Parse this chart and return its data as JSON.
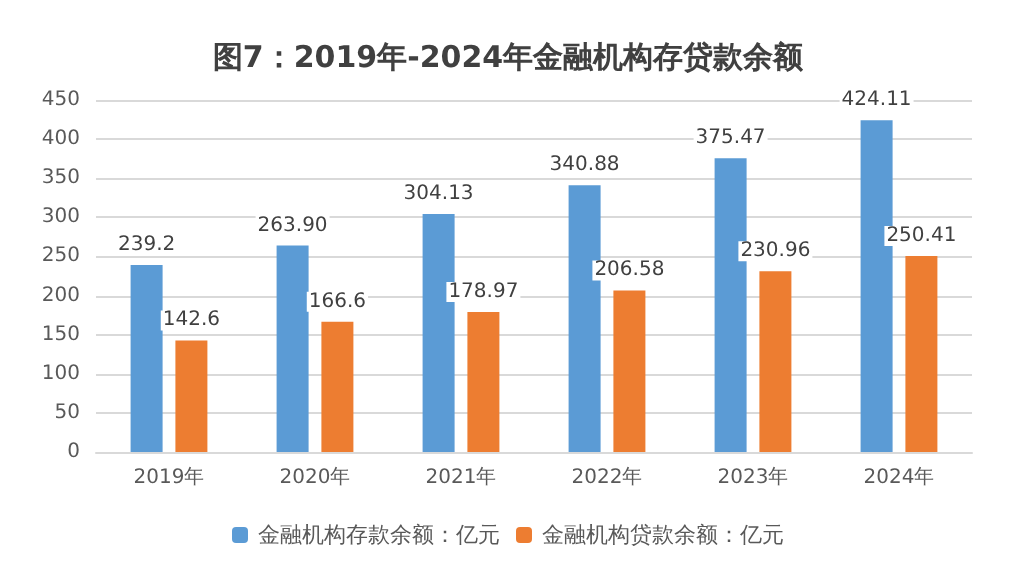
{
  "chart_data": {
    "type": "bar",
    "title": "图7：2019年-2024年金融机构存贷款余额",
    "categories": [
      "2019年",
      "2020年",
      "2021年",
      "2022年",
      "2023年",
      "2024年"
    ],
    "series": [
      {
        "name": "金融机构存款余额：亿元",
        "color": "#5b9bd5",
        "values": [
          239.2,
          263.9,
          304.13,
          340.88,
          375.47,
          424.11
        ],
        "value_labels": [
          "239.2",
          "263.90",
          "304.13",
          "340.88",
          "375.47",
          "424.11"
        ]
      },
      {
        "name": "金融机构贷款余额：亿元",
        "color": "#ed7d31",
        "values": [
          142.6,
          166.6,
          178.97,
          206.58,
          230.96,
          250.41
        ],
        "value_labels": [
          "142.6",
          "166.6",
          "178.97",
          "206.58",
          "230.96",
          "250.41"
        ]
      }
    ],
    "ylim": [
      0,
      450
    ],
    "yticks": [
      0,
      50,
      100,
      150,
      200,
      250,
      300,
      350,
      400,
      450
    ],
    "grid": "y",
    "legend": "bottom"
  }
}
